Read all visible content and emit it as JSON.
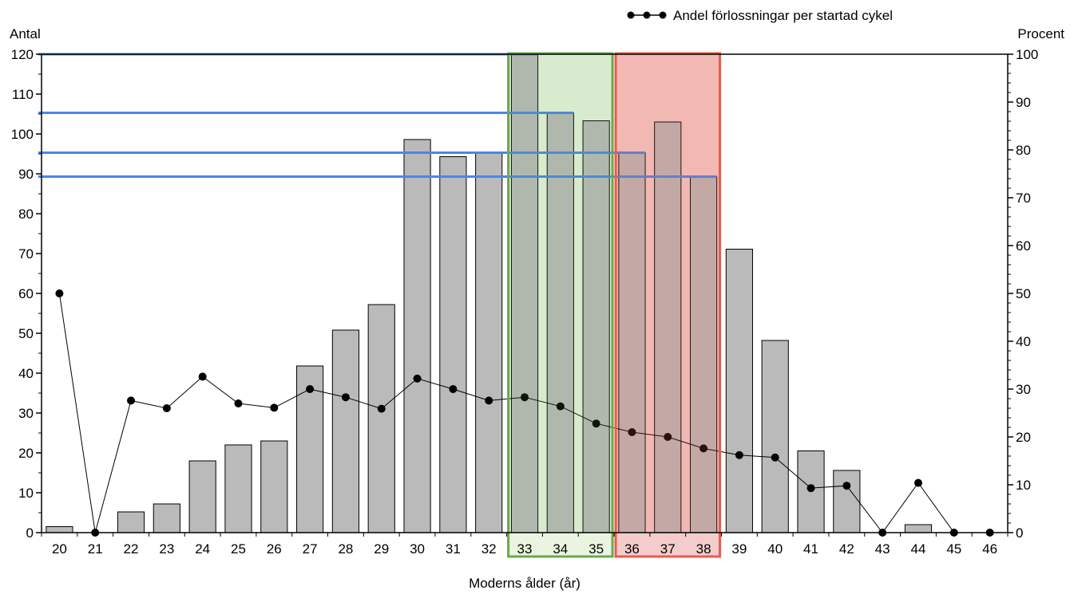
{
  "chart_data": {
    "type": "bar",
    "xlabel": "Moderns ålder (år)",
    "ylabel_left": "Antal",
    "ylabel_right": "Procent",
    "categories": [
      "20",
      "21",
      "22",
      "23",
      "24",
      "25",
      "26",
      "27",
      "28",
      "29",
      "30",
      "31",
      "32",
      "33",
      "34",
      "35",
      "36",
      "37",
      "38",
      "39",
      "40",
      "41",
      "42",
      "43",
      "44",
      "45",
      "46"
    ],
    "ylim_left": [
      0,
      120
    ],
    "ylim_right": [
      0,
      100
    ],
    "yticks_left": [
      0,
      10,
      20,
      30,
      40,
      50,
      60,
      70,
      80,
      90,
      100,
      110,
      120
    ],
    "yticks_right": [
      0,
      10,
      20,
      30,
      40,
      50,
      60,
      70,
      80,
      90,
      100
    ],
    "bars": {
      "axis": "left",
      "values": [
        1.5,
        0,
        5.2,
        7.2,
        18,
        22,
        23,
        41.8,
        50.8,
        57.2,
        98.6,
        94.3,
        95.3,
        120,
        105.3,
        103.3,
        95.3,
        103,
        89.3,
        71.1,
        48.2,
        20.5,
        15.6,
        0,
        2,
        0,
        0
      ]
    },
    "series": [
      {
        "name": "Andel förlossningar per startad cykel",
        "axis": "right",
        "values": [
          50,
          0,
          27.6,
          26,
          32.6,
          27,
          26.1,
          30,
          28.3,
          25.9,
          32.2,
          30,
          27.6,
          28.3,
          26.4,
          22.8,
          21,
          20,
          17.6,
          16.2,
          15.7,
          9.3,
          9.8,
          0,
          10.4,
          0,
          0
        ]
      }
    ],
    "legend_placement": "top-center",
    "grid": false,
    "highlight_boxes": [
      {
        "categories": [
          "33",
          "34",
          "35"
        ],
        "stroke": "#6aa84f",
        "fill": "#e9f5e0"
      },
      {
        "categories": [
          "36",
          "37",
          "38"
        ],
        "stroke": "#ea5c4a",
        "fill": "#f4cccc"
      }
    ],
    "reference_lines": [
      {
        "axis": "left",
        "value": 120,
        "to_category": "33"
      },
      {
        "axis": "left",
        "value": 105.3,
        "to_category": "34"
      },
      {
        "axis": "left",
        "value": 95.3,
        "to_category": "36"
      },
      {
        "axis": "left",
        "value": 89.3,
        "to_category": "38"
      }
    ],
    "reference_line_color": "#4a86e8"
  }
}
